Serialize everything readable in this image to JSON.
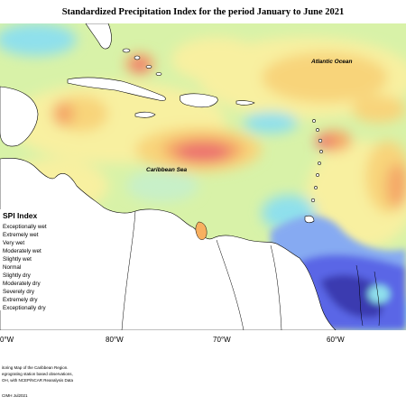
{
  "title": "Standardized Precipitation Index for the period January to June 2021",
  "map_labels": {
    "ocean": "Atlantic Ocean",
    "sea": "Caribbean Sea"
  },
  "longitude_labels": [
    "0°W",
    "80°W",
    "70°W",
    "60°W"
  ],
  "legend": {
    "title": "SPI Index",
    "items": [
      {
        "label": "Exceptionally wet",
        "color": "#3a3ab0"
      },
      {
        "label": "Extremely wet",
        "color": "#5a66e6"
      },
      {
        "label": "Very wet",
        "color": "#86aaf2"
      },
      {
        "label": "Moderately wet",
        "color": "#8fe0ec"
      },
      {
        "label": "Slightly wet",
        "color": "#c8f0c8"
      },
      {
        "label": "Normal",
        "color": "#d8f2a8"
      },
      {
        "label": "Slightly dry",
        "color": "#f8f0a0"
      },
      {
        "label": "Moderately dry",
        "color": "#f8d47a"
      },
      {
        "label": "Severely dry",
        "color": "#f4a868"
      },
      {
        "label": "Extremely dry",
        "color": "#ec7070"
      },
      {
        "label": "Exceptionally dry",
        "color": "#d02848"
      }
    ]
  },
  "footnotes": [
    "itoring Map of the Caribbean Region.",
    "egrograting station based observations,",
    "OH, with NCEP/NCAR Reanalysis Data",
    "CIMH Jul2021"
  ]
}
